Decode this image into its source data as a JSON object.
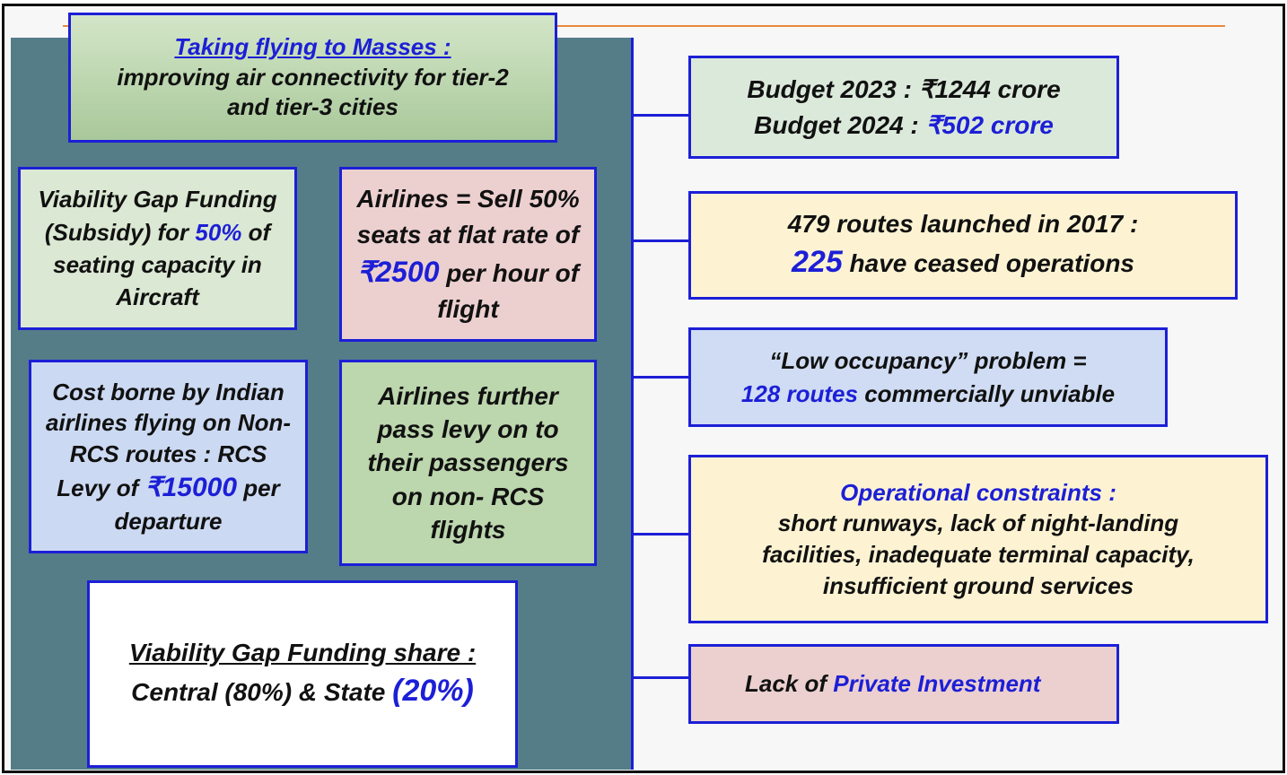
{
  "header": {
    "title": "Taking flying to Masses :",
    "subtitle": "improving air connectivity for tier-2 and tier-3 cities"
  },
  "left": [
    {
      "parts": [
        "Viability Gap Funding (Subsidy) for ",
        "50%",
        " of seating capacity in Aircraft"
      ]
    },
    {
      "parts": [
        "Airlines = Sell 50% seats at flat rate of ",
        "₹2500",
        " per hour of flight"
      ]
    },
    {
      "parts": [
        "Cost borne by Indian airlines flying on Non- RCS routes : RCS Levy of ",
        "₹15000",
        " per departure"
      ]
    },
    {
      "parts": [
        "Airlines further pass levy on to their passengers on non- RCS flights"
      ]
    },
    {
      "parts": [
        "Viability Gap Funding share :",
        "Central (80%) & State ",
        "(20%)"
      ]
    }
  ],
  "right": [
    {
      "parts": [
        "Budget 2023 : ₹1244 crore",
        "Budget 2024 : ",
        "₹502 crore"
      ]
    },
    {
      "parts": [
        "479 routes launched in 2017 :",
        "225",
        " have ceased operations"
      ]
    },
    {
      "parts": [
        "“Low occupancy” problem =",
        "128 routes",
        " commercially unviable"
      ]
    },
    {
      "parts": [
        "Operational constraints :",
        "short runways, lack of night-landing facilities, inadequate terminal capacity, insufficient ground services"
      ]
    },
    {
      "parts": [
        "Lack of ",
        "Private Investment"
      ]
    }
  ]
}
